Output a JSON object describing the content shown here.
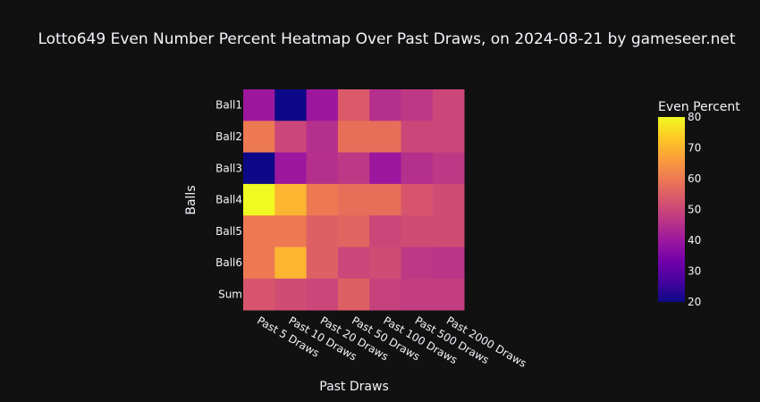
{
  "chart_data": {
    "type": "heatmap",
    "title": "Lotto649 Even Number Percent Heatmap Over Past Draws, on 2024-08-21 by gameseer.net",
    "xlabel": "Past Draws",
    "ylabel": "Balls",
    "x": [
      "Past 5 Draws",
      "Past 10 Draws",
      "Past 20 Draws",
      "Past 50 Draws",
      "Past 100 Draws",
      "Past 500 Draws",
      "Past 2000 Draws"
    ],
    "y": [
      "Ball1",
      "Ball2",
      "Ball3",
      "Ball4",
      "Ball5",
      "Ball6",
      "Sum"
    ],
    "z": [
      [
        40,
        20,
        40,
        54,
        45,
        47,
        50
      ],
      [
        60,
        50,
        45,
        58,
        58,
        50,
        50
      ],
      [
        20,
        40,
        45,
        47,
        40,
        45,
        47
      ],
      [
        80,
        70,
        60,
        58,
        58,
        53,
        51
      ],
      [
        60,
        60,
        55,
        56,
        50,
        51,
        51
      ],
      [
        60,
        70,
        55,
        50,
        51,
        47,
        46
      ],
      [
        53,
        51,
        50,
        55,
        49,
        48,
        48
      ]
    ],
    "colorbar": {
      "title": "Even Percent",
      "range": [
        20,
        80
      ],
      "ticks": [
        20,
        30,
        40,
        50,
        60,
        70,
        80
      ]
    },
    "colorscale": "plasma"
  }
}
